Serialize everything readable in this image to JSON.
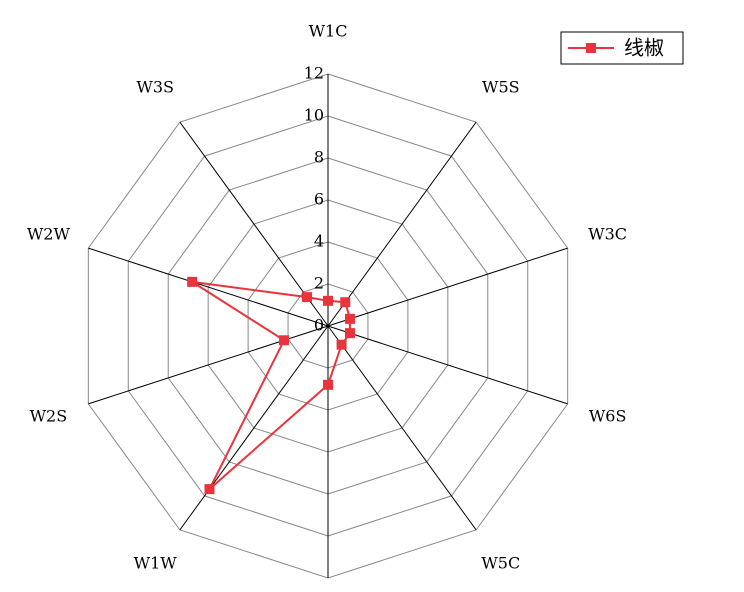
{
  "chart_data": {
    "type": "radar",
    "categories": [
      "W1C",
      "W5S",
      "W3C",
      "W6S",
      "W5C",
      null,
      "W1W",
      "W2S",
      "W2W",
      "W3S"
    ],
    "series": [
      {
        "name": "线椒",
        "color": "#e8343c",
        "values": [
          1.2,
          1.4,
          1.1,
          1.1,
          1.1,
          2.8,
          9.6,
          2.2,
          6.8,
          1.7
        ]
      }
    ],
    "ylim": [
      0,
      12
    ],
    "yticks": [
      0,
      2,
      4,
      6,
      8,
      10,
      12
    ],
    "grid": true,
    "legend": "top-right"
  }
}
